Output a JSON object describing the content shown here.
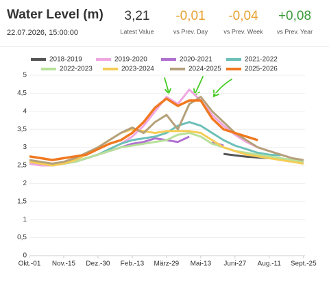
{
  "header": {
    "title": "Water Level (m)",
    "timestamp": "22.07.2026, 15:00:00",
    "stats": [
      {
        "value": "3,21",
        "label": "Latest Value",
        "color": "#333333"
      },
      {
        "value": "-0,01",
        "label": "vs Prev. Day",
        "color": "#e8a030"
      },
      {
        "value": "-0,04",
        "label": "vs Prev. Week",
        "color": "#e8a030"
      },
      {
        "value": "+0,08",
        "label": "vs Prev. Year",
        "color": "#3a9a3a"
      }
    ]
  },
  "chart_data": {
    "type": "line",
    "x": [
      0,
      15,
      30,
      45,
      60,
      75,
      90,
      105,
      120,
      135,
      150,
      165,
      180,
      195,
      210,
      225,
      240,
      255,
      270,
      285,
      300,
      315,
      330,
      345,
      360
    ],
    "xlim": [
      0,
      362
    ],
    "xticks": [
      {
        "value": 0,
        "label": "Okt.-01"
      },
      {
        "value": 45,
        "label": "Nov.-15"
      },
      {
        "value": 90,
        "label": "Dez.-30"
      },
      {
        "value": 135,
        "label": "Feb.-13"
      },
      {
        "value": 180,
        "label": "März-29"
      },
      {
        "value": 225,
        "label": "Mai-13"
      },
      {
        "value": 270,
        "label": "Juni-27"
      },
      {
        "value": 315,
        "label": "Aug.-11"
      },
      {
        "value": 360,
        "label": "Sept.-25"
      }
    ],
    "ylim": [
      0,
      5
    ],
    "yticks": [
      0,
      {
        "value": 0.5,
        "label": "0,5"
      },
      1,
      {
        "value": 1.5,
        "label": "1,5"
      },
      2,
      {
        "value": 2.5,
        "label": "2,5"
      },
      3,
      {
        "value": 3.5,
        "label": "3,5"
      },
      4,
      {
        "value": 4.5,
        "label": "4,5"
      },
      5
    ],
    "grid": true,
    "series": [
      {
        "name": "2018-2019",
        "color": "#555555",
        "values": [
          null,
          null,
          null,
          null,
          null,
          null,
          null,
          null,
          null,
          null,
          null,
          null,
          null,
          null,
          null,
          null,
          null,
          2.82,
          2.78,
          2.74,
          2.72,
          2.7,
          2.67,
          2.63,
          2.58
        ]
      },
      {
        "name": "2019-2020",
        "color": "#f0a6e0",
        "values": [
          2.55,
          2.5,
          2.5,
          2.55,
          2.6,
          2.7,
          2.8,
          2.95,
          3.1,
          3.3,
          3.6,
          4.0,
          4.4,
          4.2,
          4.6,
          4.3,
          3.9,
          3.6,
          3.35,
          3.15,
          3.0,
          2.9,
          2.8,
          2.7,
          2.6
        ]
      },
      {
        "name": "2020-2021",
        "color": "#b070d0",
        "values": [
          2.6,
          2.55,
          2.5,
          2.55,
          2.6,
          2.7,
          2.8,
          2.9,
          3.0,
          3.1,
          3.15,
          3.25,
          3.2,
          3.15,
          3.3,
          null,
          3.15,
          3.05,
          null,
          null,
          null,
          null,
          null,
          null,
          null
        ]
      },
      {
        "name": "2021-2022",
        "color": "#6cc0b8",
        "values": [
          2.6,
          2.55,
          2.5,
          2.55,
          2.6,
          2.7,
          2.8,
          2.95,
          3.1,
          3.2,
          3.25,
          3.3,
          3.4,
          3.6,
          3.7,
          3.6,
          3.4,
          3.2,
          3.05,
          2.95,
          2.85,
          2.8,
          2.78,
          null,
          null
        ]
      },
      {
        "name": "2022-2023",
        "color": "#b8e09a",
        "values": [
          2.6,
          2.55,
          2.5,
          2.55,
          2.6,
          2.7,
          2.8,
          2.9,
          3.0,
          3.05,
          3.1,
          3.15,
          3.2,
          3.35,
          3.4,
          3.3,
          3.1,
          3.0,
          2.9,
          2.85,
          2.8,
          2.75,
          2.7,
          2.65,
          2.6
        ]
      },
      {
        "name": "2023-2024",
        "color": "#f5cc55",
        "values": [
          2.6,
          2.55,
          2.5,
          2.55,
          2.65,
          2.8,
          3.0,
          3.2,
          3.4,
          3.5,
          3.45,
          3.4,
          3.45,
          3.45,
          3.45,
          3.4,
          3.2,
          3.0,
          2.9,
          2.8,
          2.75,
          2.7,
          2.65,
          2.6,
          2.55
        ]
      },
      {
        "name": "2024-2025",
        "color": "#b5a07a",
        "values": [
          2.65,
          2.6,
          2.55,
          2.6,
          2.7,
          2.85,
          3.0,
          3.2,
          3.4,
          3.55,
          3.4,
          3.7,
          3.9,
          3.5,
          4.2,
          4.4,
          4.0,
          3.7,
          3.4,
          3.2,
          3.0,
          2.9,
          2.8,
          2.7,
          2.65
        ]
      },
      {
        "name": "2025-2026",
        "color": "#f07820",
        "values": [
          2.75,
          2.7,
          2.65,
          2.7,
          2.75,
          2.8,
          2.95,
          3.1,
          3.2,
          3.4,
          3.7,
          4.1,
          4.35,
          4.15,
          4.3,
          4.3,
          3.8,
          3.5,
          3.4,
          3.3,
          3.2,
          null,
          null,
          null,
          null
        ]
      }
    ]
  }
}
